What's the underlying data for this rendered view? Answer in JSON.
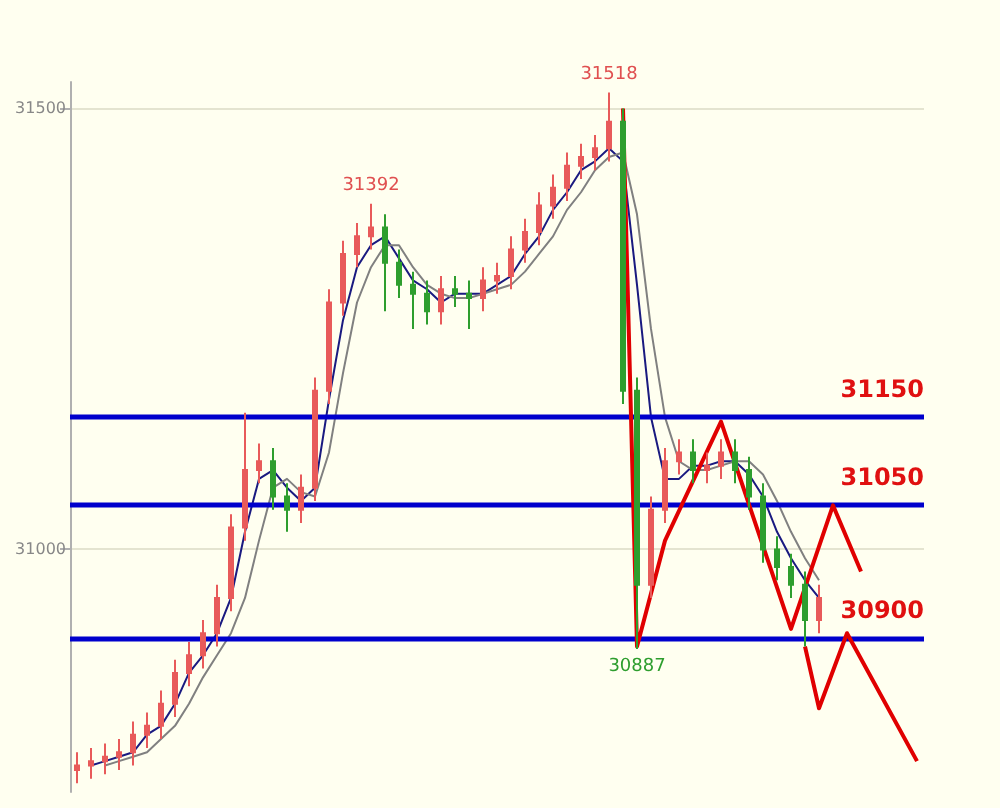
{
  "chart_data": {
    "type": "candlestick",
    "categories": [
      null,
      null,
      null,
      null,
      null,
      null,
      null,
      null,
      null,
      null,
      null,
      null,
      null,
      null,
      null,
      null,
      null,
      null,
      null,
      null,
      null,
      null,
      null,
      null,
      null,
      null,
      null,
      null,
      null,
      null,
      null,
      null,
      null,
      null,
      null,
      null,
      null,
      null,
      null,
      null,
      null,
      null,
      null,
      null,
      null,
      null,
      null,
      null,
      null,
      null,
      null,
      null,
      null,
      null,
      null,
      null,
      null,
      null,
      null,
      null,
      null
    ],
    "ohlc": [
      [
        30750,
        30770,
        30735,
        30755
      ],
      [
        30755,
        30775,
        30740,
        30760
      ],
      [
        30760,
        30780,
        30745,
        30765
      ],
      [
        30765,
        30785,
        30750,
        30770
      ],
      [
        30770,
        30805,
        30755,
        30790
      ],
      [
        30790,
        30815,
        30775,
        30800
      ],
      [
        30800,
        30840,
        30785,
        30825
      ],
      [
        30825,
        30875,
        30810,
        30860
      ],
      [
        30860,
        30895,
        30845,
        30880
      ],
      [
        30880,
        30920,
        30865,
        30905
      ],
      [
        30905,
        30960,
        30890,
        30945
      ],
      [
        30945,
        31040,
        30930,
        31025
      ],
      [
        31025,
        31155,
        31010,
        31090
      ],
      [
        31090,
        31120,
        31075,
        31100
      ],
      [
        31100,
        31115,
        31045,
        31060
      ],
      [
        31060,
        31075,
        31020,
        31045
      ],
      [
        31045,
        31085,
        31030,
        31070
      ],
      [
        31070,
        31195,
        31055,
        31180
      ],
      [
        31180,
        31295,
        31165,
        31280
      ],
      [
        31280,
        31350,
        31265,
        31335
      ],
      [
        31335,
        31370,
        31320,
        31355
      ],
      [
        31355,
        31392,
        31340,
        31365
      ],
      [
        31365,
        31380,
        31270,
        31325
      ],
      [
        31325,
        31340,
        31285,
        31300
      ],
      [
        31300,
        31315,
        31250,
        31290
      ],
      [
        31290,
        31305,
        31255,
        31270
      ],
      [
        31270,
        31310,
        31255,
        31295
      ],
      [
        31295,
        31310,
        31275,
        31290
      ],
      [
        31290,
        31305,
        31250,
        31285
      ],
      [
        31285,
        31320,
        31270,
        31305
      ],
      [
        31305,
        31325,
        31290,
        31310
      ],
      [
        31310,
        31355,
        31295,
        31340
      ],
      [
        31340,
        31375,
        31325,
        31360
      ],
      [
        31360,
        31405,
        31345,
        31390
      ],
      [
        31390,
        31425,
        31375,
        31410
      ],
      [
        31410,
        31450,
        31395,
        31435
      ],
      [
        31435,
        31460,
        31420,
        31445
      ],
      [
        31445,
        31470,
        31430,
        31455
      ],
      [
        31455,
        31518,
        31440,
        31485
      ],
      [
        31485,
        31500,
        31165,
        31180
      ],
      [
        31180,
        31195,
        30887,
        30960
      ],
      [
        30960,
        31060,
        30945,
        31045
      ],
      [
        31045,
        31115,
        31030,
        31100
      ],
      [
        31100,
        31125,
        31085,
        31110
      ],
      [
        31110,
        31125,
        31075,
        31090
      ],
      [
        31090,
        31110,
        31075,
        31095
      ],
      [
        31095,
        31125,
        31080,
        31110
      ],
      [
        31110,
        31125,
        31075,
        31090
      ],
      [
        31090,
        31105,
        31045,
        31060
      ],
      [
        31060,
        31075,
        30985,
        31000
      ],
      [
        31000,
        31015,
        30965,
        30980
      ],
      [
        30980,
        30995,
        30945,
        30960
      ],
      [
        30960,
        30975,
        30890,
        30920
      ],
      [
        30920,
        30960,
        30905,
        30945
      ],
      null,
      null,
      null,
      null,
      null,
      null,
      null
    ],
    "colors": [
      "#e85a5a",
      "#e85a5a",
      "#e85a5a",
      "#e85a5a",
      "#e85a5a",
      "#e85a5a",
      "#e85a5a",
      "#e85a5a",
      "#e85a5a",
      "#e85a5a",
      "#e85a5a",
      "#e85a5a",
      "#e85a5a",
      "#e85a5a",
      "#2e9e2e",
      "#2e9e2e",
      "#e85a5a",
      "#e85a5a",
      "#e85a5a",
      "#e85a5a",
      "#e85a5a",
      "#e85a5a",
      "#2e9e2e",
      "#2e9e2e",
      "#2e9e2e",
      "#2e9e2e",
      "#e85a5a",
      "#2e9e2e",
      "#2e9e2e",
      "#e85a5a",
      "#e85a5a",
      "#e85a5a",
      "#e85a5a",
      "#e85a5a",
      "#e85a5a",
      "#e85a5a",
      "#e85a5a",
      "#e85a5a",
      "#e85a5a",
      "#2e9e2e",
      "#2e9e2e",
      "#e85a5a",
      "#e85a5a",
      "#e85a5a",
      "#2e9e2e",
      "#e85a5a",
      "#e85a5a",
      "#2e9e2e",
      "#2e9e2e",
      "#2e9e2e",
      "#2e9e2e",
      "#2e9e2e",
      "#2e9e2e",
      "#e85a5a",
      null,
      null,
      null,
      null,
      null,
      null,
      null
    ],
    "series": [
      {
        "type": "line",
        "color": "#1a1a80",
        "values": [
          null,
          30755,
          30760,
          30765,
          30770,
          30790,
          30800,
          30825,
          30860,
          30880,
          30905,
          30945,
          31020,
          31080,
          31090,
          31070,
          31055,
          31070,
          31170,
          31260,
          31320,
          31345,
          31355,
          31330,
          31305,
          31295,
          31280,
          31290,
          31290,
          31290,
          31300,
          31310,
          31335,
          31355,
          31385,
          31405,
          31430,
          31440,
          31455,
          31440,
          31300,
          31150,
          31080,
          31080,
          31095,
          31095,
          31100,
          31100,
          31085,
          31060,
          31020,
          30990,
          30965,
          30945,
          null,
          null,
          null,
          null,
          null,
          null,
          null
        ]
      },
      {
        "type": "line",
        "color": "#808080",
        "values": [
          null,
          null,
          30755,
          30760,
          30765,
          30770,
          30785,
          30800,
          30825,
          30855,
          30880,
          30905,
          30945,
          31010,
          31070,
          31080,
          31065,
          31060,
          31110,
          31200,
          31280,
          31320,
          31345,
          31345,
          31320,
          31300,
          31290,
          31285,
          31285,
          31290,
          31295,
          31300,
          31315,
          31335,
          31355,
          31385,
          31405,
          31430,
          31445,
          31450,
          31380,
          31250,
          31150,
          31100,
          31090,
          31090,
          31095,
          31100,
          31100,
          31085,
          31055,
          31020,
          30990,
          30965,
          null,
          null,
          null,
          null,
          null,
          null,
          null
        ]
      },
      {
        "type": "line",
        "color": "#e00000",
        "values": [
          null,
          null,
          null,
          null,
          null,
          null,
          null,
          null,
          null,
          null,
          null,
          null,
          null,
          null,
          null,
          null,
          null,
          null,
          null,
          null,
          null,
          null,
          null,
          null,
          null,
          null,
          null,
          null,
          null,
          null,
          null,
          null,
          null,
          null,
          null,
          null,
          null,
          null,
          null,
          31500,
          30890,
          null,
          31010,
          null,
          null,
          null,
          31145,
          null,
          null,
          null,
          null,
          30910,
          null,
          null,
          31050,
          null,
          30975,
          null,
          null,
          null,
          null
        ]
      },
      {
        "type": "line",
        "color": "#e00000",
        "values": [
          null,
          null,
          null,
          null,
          null,
          null,
          null,
          null,
          null,
          null,
          null,
          null,
          null,
          null,
          null,
          null,
          null,
          null,
          null,
          null,
          null,
          null,
          null,
          null,
          null,
          null,
          null,
          null,
          null,
          null,
          null,
          null,
          null,
          null,
          null,
          null,
          null,
          null,
          null,
          null,
          null,
          null,
          null,
          null,
          null,
          null,
          null,
          null,
          null,
          null,
          null,
          null,
          30890,
          30820,
          null,
          30905,
          null,
          null,
          null,
          null,
          30760
        ]
      }
    ],
    "ylim": [
      30725,
      31530
    ],
    "yticks": [
      31000,
      31500
    ],
    "grid": "y",
    "marker": "none",
    "ref_lines": [
      {
        "axis": "y",
        "value": 31150,
        "label": "31150",
        "color": "#0000cc"
      },
      {
        "axis": "y",
        "value": 31050,
        "label": "31050",
        "color": "#0000cc"
      },
      {
        "axis": "y",
        "value": 30900,
        "label": "30900",
        "color": "#0000cc"
      }
    ],
    "annotations": [
      {
        "text": "31392",
        "y": 31392
      },
      {
        "text": "31518",
        "y": 31518
      },
      {
        "text": "30887",
        "y": 30887
      }
    ]
  }
}
